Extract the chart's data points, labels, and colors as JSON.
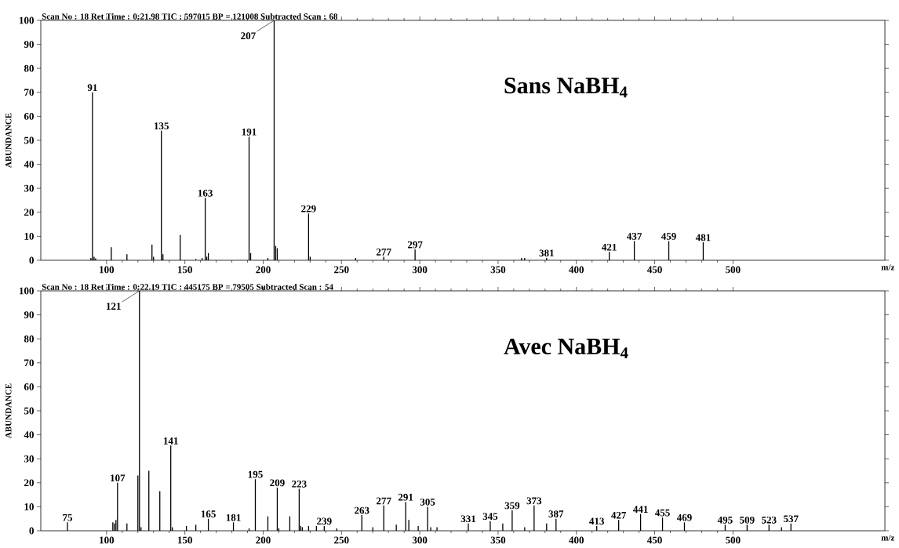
{
  "chart_data": [
    {
      "type": "bar",
      "title": "Scan No : 18     Ret Time : 0:21.98   TIC : 597015   BP = 121008    Subtracted Scan : 68",
      "xlabel": "m/z",
      "ylabel": "ABUNDANCE",
      "color": "#000000",
      "x": [
        90,
        91,
        92,
        93,
        103,
        113,
        129,
        130,
        135,
        136,
        147,
        157,
        161,
        163,
        164,
        165,
        191,
        192,
        203,
        207,
        208,
        209,
        229,
        230,
        259,
        277,
        297,
        365,
        367,
        381,
        421,
        437,
        459,
        481
      ],
      "values": [
        1,
        70,
        1.5,
        0.8,
        5.5,
        2.5,
        6.5,
        1.5,
        54,
        2.5,
        10.5,
        0.5,
        1,
        26,
        1.5,
        3,
        51.5,
        3,
        1,
        100,
        6,
        5,
        19.5,
        1.5,
        1,
        1.5,
        4.5,
        1,
        1,
        1,
        3.5,
        8,
        8,
        7.5
      ],
      "xlim": [
        58,
        597
      ],
      "ylim": [
        0,
        100
      ],
      "xticks": [
        100,
        150,
        200,
        250,
        300,
        350,
        400,
        450,
        500
      ],
      "yticks": [
        0,
        10,
        20,
        30,
        40,
        50,
        60,
        70,
        80,
        90,
        100
      ],
      "annotations": [
        "Sans NaBH$_{4}$",
        {
          "text": "91",
          "x": 91,
          "y": 70
        },
        {
          "text": "135",
          "x": 135,
          "y": 54
        },
        {
          "text": "163",
          "x": 163,
          "y": 26
        },
        {
          "text": "191",
          "x": 191,
          "y": 51.5
        },
        {
          "text": "207",
          "x": 207,
          "y": 100
        },
        {
          "text": "229",
          "x": 229,
          "y": 19.5
        },
        {
          "text": "277",
          "x": 277,
          "y": 1.5
        },
        {
          "text": "297",
          "x": 297,
          "y": 4.5
        },
        {
          "text": "381",
          "x": 381,
          "y": 1
        },
        {
          "text": "421",
          "x": 421,
          "y": 3.5
        },
        {
          "text": "437",
          "x": 437,
          "y": 8
        },
        {
          "text": "459",
          "x": 459,
          "y": 8
        },
        {
          "text": "481",
          "x": 481,
          "y": 7.5
        }
      ]
    },
    {
      "type": "bar",
      "title": "Scan No : 18     Ret Time : 0:22.19   TIC : 445175   BP = 79505    Subtracted Scan : 54",
      "xlabel": "m/z",
      "ylabel": "ABUNDANCE",
      "color": "#000000",
      "x": [
        75,
        104,
        105,
        106,
        107,
        113,
        120,
        121,
        122,
        127,
        134,
        141,
        142,
        151,
        157,
        165,
        181,
        191,
        195,
        203,
        209,
        210,
        217,
        223,
        224,
        225,
        229,
        234,
        239,
        247,
        263,
        270,
        277,
        285,
        291,
        293,
        299,
        305,
        307,
        311,
        331,
        345,
        353,
        359,
        367,
        373,
        381,
        387,
        413,
        427,
        441,
        455,
        469,
        495,
        509,
        523,
        531,
        537
      ],
      "values": [
        3.5,
        3.5,
        3,
        4.5,
        20,
        3,
        23,
        100,
        1.5,
        25,
        16.5,
        35.5,
        1.5,
        2,
        2.5,
        5,
        3.5,
        1,
        21.5,
        6,
        18,
        1,
        6,
        17.5,
        2,
        1.5,
        2,
        2,
        2,
        1,
        6.5,
        1.5,
        10.5,
        2.5,
        12,
        4.5,
        2,
        10,
        1.5,
        1.5,
        3,
        4,
        3,
        8.5,
        1.5,
        10.5,
        3,
        5,
        2,
        4.5,
        7,
        5.5,
        3.5,
        2.5,
        2.5,
        2.5,
        1.5,
        3
      ],
      "xlim": [
        58,
        597
      ],
      "ylim": [
        0,
        100
      ],
      "xticks": [
        100,
        150,
        200,
        250,
        300,
        350,
        400,
        450,
        500
      ],
      "yticks": [
        0,
        10,
        20,
        30,
        40,
        50,
        60,
        70,
        80,
        90,
        100
      ],
      "annotations": [
        "Avec NaBH$_{4}$",
        {
          "text": "75",
          "x": 75,
          "y": 3.5
        },
        {
          "text": "107",
          "x": 107,
          "y": 20
        },
        {
          "text": "121",
          "x": 121,
          "y": 100
        },
        {
          "text": "141",
          "x": 141,
          "y": 35.5
        },
        {
          "text": "165",
          "x": 165,
          "y": 5
        },
        {
          "text": "181",
          "x": 181,
          "y": 3.5
        },
        {
          "text": "195",
          "x": 195,
          "y": 21.5
        },
        {
          "text": "209",
          "x": 209,
          "y": 18
        },
        {
          "text": "223",
          "x": 223,
          "y": 17.5
        },
        {
          "text": "239",
          "x": 239,
          "y": 2
        },
        {
          "text": "263",
          "x": 263,
          "y": 6.5
        },
        {
          "text": "277",
          "x": 277,
          "y": 10.5
        },
        {
          "text": "291",
          "x": 291,
          "y": 12
        },
        {
          "text": "305",
          "x": 305,
          "y": 10
        },
        {
          "text": "331",
          "x": 331,
          "y": 3
        },
        {
          "text": "345",
          "x": 345,
          "y": 4
        },
        {
          "text": "359",
          "x": 359,
          "y": 8.5
        },
        {
          "text": "373",
          "x": 373,
          "y": 10.5
        },
        {
          "text": "387",
          "x": 387,
          "y": 5
        },
        {
          "text": "413",
          "x": 413,
          "y": 2
        },
        {
          "text": "427",
          "x": 427,
          "y": 4.5
        },
        {
          "text": "441",
          "x": 441,
          "y": 7
        },
        {
          "text": "455",
          "x": 455,
          "y": 5.5
        },
        {
          "text": "469",
          "x": 469,
          "y": 3.5
        },
        {
          "text": "495",
          "x": 495,
          "y": 2.5
        },
        {
          "text": "509",
          "x": 509,
          "y": 2.5
        },
        {
          "text": "523",
          "x": 523,
          "y": 2.5
        },
        {
          "text": "537",
          "x": 537,
          "y": 3
        }
      ]
    }
  ]
}
